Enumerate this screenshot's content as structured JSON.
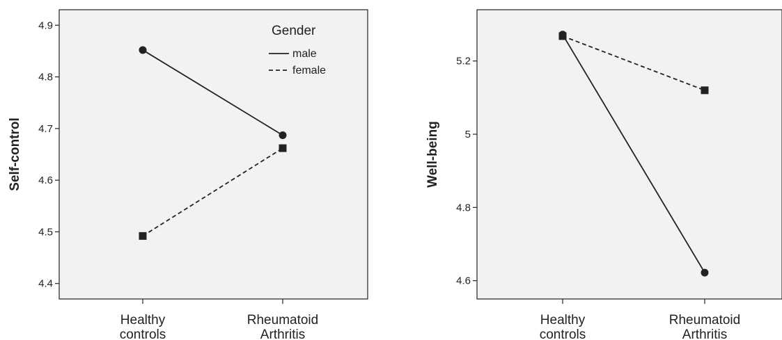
{
  "chart_data": [
    {
      "type": "line",
      "ylabel": "Self-control",
      "categories": [
        "Healthy\ncontrols",
        "Rheumatoid\nArthritis"
      ],
      "ylim": [
        4.37,
        4.93
      ],
      "yticks": [
        4.4,
        4.5,
        4.6,
        4.7,
        4.8,
        4.9
      ],
      "series": [
        {
          "name": "male",
          "style": "solid",
          "marker": "circle",
          "values": [
            4.852,
            4.687
          ]
        },
        {
          "name": "female",
          "style": "dashed",
          "marker": "square",
          "values": [
            4.492,
            4.662
          ]
        }
      ],
      "legend": {
        "title": "Gender",
        "placement": "top-right"
      },
      "background": "#f2f2f2",
      "line_color": "#222222"
    },
    {
      "type": "line",
      "ylabel": "Well-being",
      "categories": [
        "Healthy\ncontrols",
        "Rheumatoid\nArthritis"
      ],
      "ylim": [
        4.55,
        5.34
      ],
      "yticks": [
        4.6,
        4.8,
        5,
        5.2
      ],
      "series": [
        {
          "name": "male",
          "style": "solid",
          "marker": "circle",
          "values": [
            5.272,
            4.622
          ]
        },
        {
          "name": "female",
          "style": "dashed",
          "marker": "square",
          "values": [
            5.268,
            5.12
          ]
        }
      ],
      "background": "#f2f2f2",
      "line_color": "#222222"
    }
  ]
}
